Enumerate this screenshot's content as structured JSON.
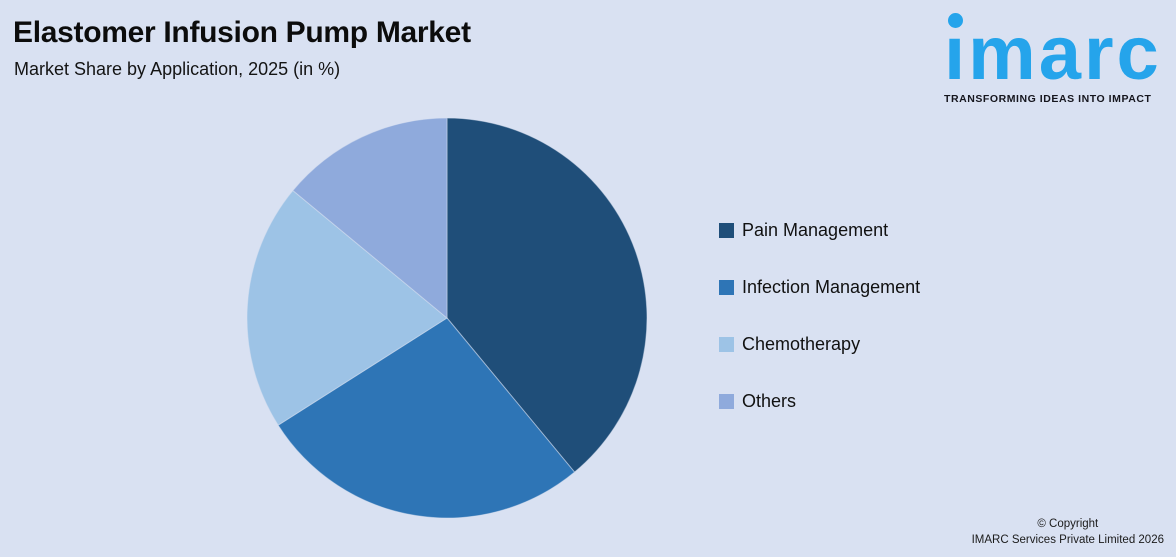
{
  "header": {
    "title": "Elastomer Infusion Pump Market",
    "subtitle": "Market Share by Application, 2025 (in %)"
  },
  "logo": {
    "brand": "imarc",
    "tagline": "TRANSFORMING IDEAS INTO IMPACT",
    "brand_color": "#25A4EB"
  },
  "chart_data": {
    "type": "pie",
    "title": "Elastomer Infusion Pump Market",
    "subtitle": "Market Share by Application, 2025 (in %)",
    "unit": "%",
    "start_angle_deg": 0,
    "direction": "clockwise",
    "legend_position": "right",
    "data_labels_visible": false,
    "slices": [
      {
        "label": "Pain Management",
        "value": 39,
        "color": "#1F4E79"
      },
      {
        "label": "Infection Management",
        "value": 27,
        "color": "#2E75B6"
      },
      {
        "label": "Chemotherapy",
        "value": 20,
        "color": "#9DC3E6"
      },
      {
        "label": "Others",
        "value": 14,
        "color": "#8FAADC"
      }
    ],
    "background_color": "#D9E1F2"
  },
  "footer": {
    "copyright_line1": "© Copyright",
    "copyright_line2": "IMARC Services Private Limited 2026"
  }
}
